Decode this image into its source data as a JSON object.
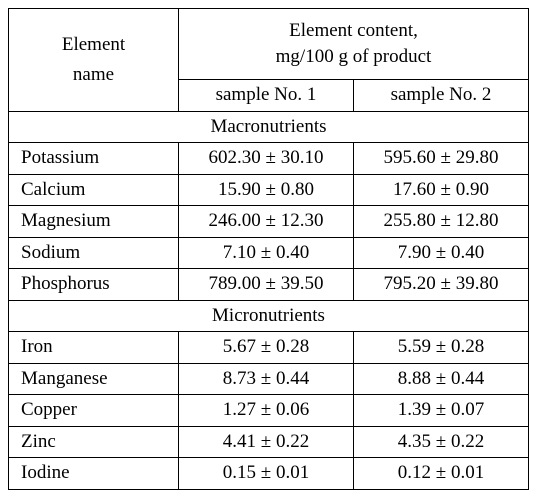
{
  "header": {
    "name": "Element name",
    "content": [
      "Element content,",
      "mg/100 g of product"
    ],
    "samples": [
      "sample No. 1",
      "sample No. 2"
    ]
  },
  "sections": [
    {
      "title": "Macronutrients",
      "rows": [
        [
          "Potassium",
          "602.30 ± 30.10",
          "595.60 ± 29.80"
        ],
        [
          "Calcium",
          "15.90 ± 0.80",
          "17.60 ± 0.90"
        ],
        [
          "Magnesium",
          "246.00 ± 12.30",
          "255.80 ± 12.80"
        ],
        [
          "Sodium",
          "7.10 ± 0.40",
          "7.90 ± 0.40"
        ],
        [
          "Phosphorus",
          "789.00 ± 39.50",
          "795.20 ± 39.80"
        ]
      ]
    },
    {
      "title": "Micronutrients",
      "rows": [
        [
          "Iron",
          "5.67 ± 0.28",
          "5.59 ± 0.28"
        ],
        [
          "Manganese",
          "8.73 ± 0.44",
          "8.88 ± 0.44"
        ],
        [
          "Copper",
          "1.27 ± 0.06",
          "1.39 ± 0.07"
        ],
        [
          "Zinc",
          "4.41 ± 0.22",
          "4.35 ± 0.22"
        ],
        [
          "Iodine",
          "0.15 ± 0.01",
          "0.12 ± 0.01"
        ]
      ]
    }
  ]
}
